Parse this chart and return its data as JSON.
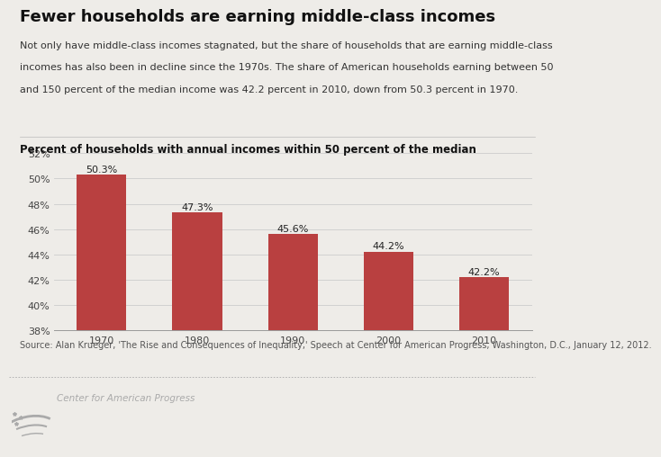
{
  "title": "Fewer households are earning middle-class incomes",
  "subtitle_line1": "Not only have middle-class incomes stagnated, but the share of households that are earning middle-class",
  "subtitle_line2": "incomes has also been in decline since the 1970s. The share of American households earning between 50",
  "subtitle_line3": "and 150 percent of the median income was 42.2 percent in 2010, down from 50.3 percent in 1970.",
  "chart_label": "Percent of households with annual incomes within 50 percent of the median",
  "categories": [
    "1970",
    "1980",
    "1990",
    "2000",
    "2010"
  ],
  "values": [
    50.3,
    47.3,
    45.6,
    44.2,
    42.2
  ],
  "bar_labels": [
    "50.3%",
    "47.3%",
    "45.6%",
    "44.2%",
    "42.2%"
  ],
  "bar_color": "#b94040",
  "background_color": "#eeece8",
  "ylim": [
    38,
    52
  ],
  "yticks": [
    38,
    40,
    42,
    44,
    46,
    48,
    50,
    52
  ],
  "ytick_labels": [
    "38%",
    "40%",
    "42%",
    "44%",
    "46%",
    "48%",
    "50%",
    "52%"
  ],
  "source_text": "Source: Alan Krueger, 'The Rise and Consequences of Inequality,' Speech at Center for American Progress, Washington, D.C., January 12, 2012.",
  "footer_text": "Center for American Progress",
  "title_fontsize": 13,
  "subtitle_fontsize": 8,
  "chart_label_fontsize": 8.5,
  "bar_label_fontsize": 8,
  "tick_fontsize": 8,
  "source_fontsize": 7
}
